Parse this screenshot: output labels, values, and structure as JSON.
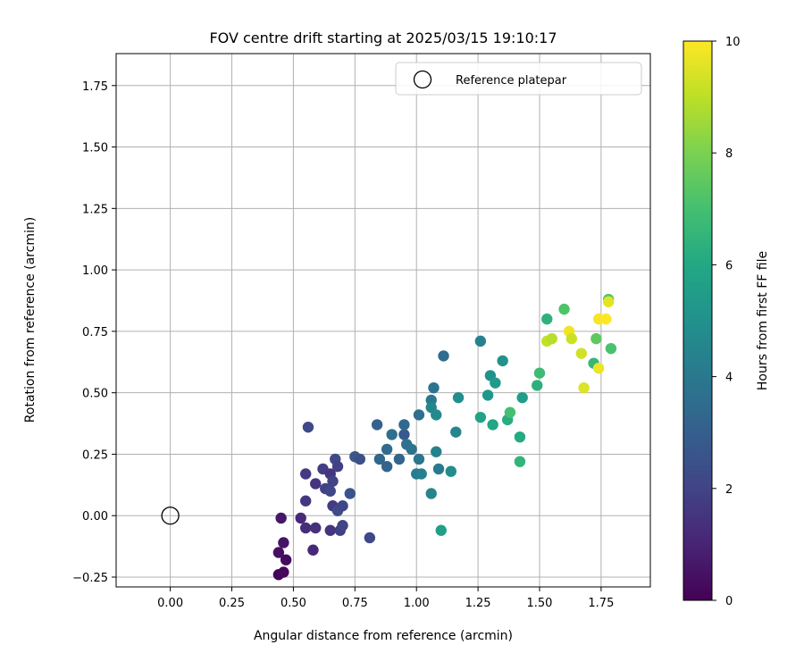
{
  "chart_data": {
    "type": "scatter",
    "title": "FOV centre drift starting at 2025/03/15 19:10:17",
    "xlabel": "Angular distance from reference (arcmin)",
    "ylabel": "Rotation from reference (arcmin)",
    "xlim": [
      -0.22,
      1.95
    ],
    "ylim": [
      -0.29,
      1.88
    ],
    "xticks": [
      "0.00",
      "0.25",
      "0.50",
      "0.75",
      "1.00",
      "1.25",
      "1.50",
      "1.75"
    ],
    "xtick_values": [
      0,
      0.25,
      0.5,
      0.75,
      1.0,
      1.25,
      1.5,
      1.75
    ],
    "yticks": [
      "−0.25",
      "0.00",
      "0.25",
      "0.50",
      "0.75",
      "1.00",
      "1.25",
      "1.50",
      "1.75"
    ],
    "ytick_values": [
      -0.25,
      0,
      0.25,
      0.5,
      0.75,
      1.0,
      1.25,
      1.5,
      1.75
    ],
    "grid": true,
    "legend": {
      "position": "top-right",
      "label": "Reference platepar"
    },
    "reference_point": {
      "x": 0.0,
      "y": 0.0
    },
    "colorbar": {
      "label": "Hours from first FF file",
      "range": [
        0,
        10
      ],
      "ticks": [
        "0",
        "2",
        "4",
        "6",
        "8",
        "10"
      ],
      "tick_values": [
        0,
        2,
        4,
        6,
        8,
        10
      ],
      "colormap": "viridis"
    },
    "points": [
      {
        "x": 0.44,
        "y": -0.24,
        "h": 0.1
      },
      {
        "x": 0.46,
        "y": -0.23,
        "h": 0.2
      },
      {
        "x": 0.47,
        "y": -0.18,
        "h": 0.3
      },
      {
        "x": 0.44,
        "y": -0.15,
        "h": 0.4
      },
      {
        "x": 0.46,
        "y": -0.11,
        "h": 0.5
      },
      {
        "x": 0.45,
        "y": -0.01,
        "h": 0.6
      },
      {
        "x": 0.53,
        "y": -0.01,
        "h": 1.2
      },
      {
        "x": 0.55,
        "y": -0.05,
        "h": 1.3
      },
      {
        "x": 0.58,
        "y": -0.14,
        "h": 1.1
      },
      {
        "x": 0.59,
        "y": -0.05,
        "h": 1.4
      },
      {
        "x": 0.55,
        "y": 0.06,
        "h": 1.6
      },
      {
        "x": 0.59,
        "y": 0.13,
        "h": 1.5
      },
      {
        "x": 0.55,
        "y": 0.17,
        "h": 1.7
      },
      {
        "x": 0.56,
        "y": 0.36,
        "h": 2.2
      },
      {
        "x": 0.62,
        "y": 0.19,
        "h": 1.8
      },
      {
        "x": 0.63,
        "y": 0.11,
        "h": 1.9
      },
      {
        "x": 0.65,
        "y": 0.17,
        "h": 1.6
      },
      {
        "x": 0.66,
        "y": 0.14,
        "h": 2.0
      },
      {
        "x": 0.65,
        "y": 0.1,
        "h": 2.1
      },
      {
        "x": 0.66,
        "y": 0.04,
        "h": 1.7
      },
      {
        "x": 0.68,
        "y": 0.02,
        "h": 2.3
      },
      {
        "x": 0.67,
        "y": 0.23,
        "h": 2.2
      },
      {
        "x": 0.68,
        "y": 0.2,
        "h": 1.9
      },
      {
        "x": 0.65,
        "y": -0.06,
        "h": 1.5
      },
      {
        "x": 0.69,
        "y": -0.06,
        "h": 1.8
      },
      {
        "x": 0.7,
        "y": -0.04,
        "h": 2.0
      },
      {
        "x": 0.7,
        "y": 0.04,
        "h": 2.1
      },
      {
        "x": 0.73,
        "y": 0.09,
        "h": 2.6
      },
      {
        "x": 0.75,
        "y": 0.24,
        "h": 2.7
      },
      {
        "x": 0.77,
        "y": 0.23,
        "h": 2.4
      },
      {
        "x": 0.81,
        "y": -0.09,
        "h": 2.2
      },
      {
        "x": 0.84,
        "y": 0.37,
        "h": 3.1
      },
      {
        "x": 0.85,
        "y": 0.23,
        "h": 3.3
      },
      {
        "x": 0.88,
        "y": 0.27,
        "h": 3.5
      },
      {
        "x": 0.88,
        "y": 0.2,
        "h": 3.2
      },
      {
        "x": 0.9,
        "y": 0.33,
        "h": 3.6
      },
      {
        "x": 0.93,
        "y": 0.23,
        "h": 3.2
      },
      {
        "x": 0.95,
        "y": 0.33,
        "h": 2.8
      },
      {
        "x": 0.95,
        "y": 0.37,
        "h": 3.4
      },
      {
        "x": 0.96,
        "y": 0.29,
        "h": 3.7
      },
      {
        "x": 0.98,
        "y": 0.27,
        "h": 3.8
      },
      {
        "x": 1.0,
        "y": 0.17,
        "h": 4.2
      },
      {
        "x": 1.01,
        "y": 0.23,
        "h": 3.9
      },
      {
        "x": 1.01,
        "y": 0.41,
        "h": 3.6
      },
      {
        "x": 1.02,
        "y": 0.17,
        "h": 4.3
      },
      {
        "x": 1.06,
        "y": 0.09,
        "h": 4.5
      },
      {
        "x": 1.06,
        "y": 0.47,
        "h": 4.0
      },
      {
        "x": 1.07,
        "y": 0.52,
        "h": 3.8
      },
      {
        "x": 1.06,
        "y": 0.44,
        "h": 4.6
      },
      {
        "x": 1.08,
        "y": 0.41,
        "h": 4.7
      },
      {
        "x": 1.08,
        "y": 0.26,
        "h": 4.4
      },
      {
        "x": 1.09,
        "y": 0.19,
        "h": 4.1
      },
      {
        "x": 1.1,
        "y": -0.06,
        "h": 5.6
      },
      {
        "x": 1.11,
        "y": 0.65,
        "h": 3.5
      },
      {
        "x": 1.14,
        "y": 0.18,
        "h": 4.8
      },
      {
        "x": 1.16,
        "y": 0.34,
        "h": 4.6
      },
      {
        "x": 1.17,
        "y": 0.48,
        "h": 4.9
      },
      {
        "x": 1.26,
        "y": 0.71,
        "h": 4.3
      },
      {
        "x": 1.26,
        "y": 0.4,
        "h": 5.8
      },
      {
        "x": 1.29,
        "y": 0.49,
        "h": 5.2
      },
      {
        "x": 1.3,
        "y": 0.57,
        "h": 5.0
      },
      {
        "x": 1.31,
        "y": 0.37,
        "h": 5.9
      },
      {
        "x": 1.32,
        "y": 0.54,
        "h": 5.4
      },
      {
        "x": 1.35,
        "y": 0.63,
        "h": 5.1
      },
      {
        "x": 1.37,
        "y": 0.39,
        "h": 6.2
      },
      {
        "x": 1.38,
        "y": 0.42,
        "h": 7.0
      },
      {
        "x": 1.42,
        "y": 0.22,
        "h": 6.5
      },
      {
        "x": 1.42,
        "y": 0.32,
        "h": 6.1
      },
      {
        "x": 1.43,
        "y": 0.48,
        "h": 5.5
      },
      {
        "x": 1.49,
        "y": 0.53,
        "h": 6.3
      },
      {
        "x": 1.5,
        "y": 0.58,
        "h": 6.8
      },
      {
        "x": 1.53,
        "y": 0.8,
        "h": 6.4
      },
      {
        "x": 1.53,
        "y": 0.71,
        "h": 9.1
      },
      {
        "x": 1.55,
        "y": 0.72,
        "h": 8.9
      },
      {
        "x": 1.6,
        "y": 0.84,
        "h": 7.2
      },
      {
        "x": 1.62,
        "y": 0.75,
        "h": 9.8
      },
      {
        "x": 1.63,
        "y": 0.72,
        "h": 9.2
      },
      {
        "x": 1.67,
        "y": 0.66,
        "h": 9.3
      },
      {
        "x": 1.68,
        "y": 0.52,
        "h": 9.5
      },
      {
        "x": 1.72,
        "y": 0.62,
        "h": 6.6
      },
      {
        "x": 1.73,
        "y": 0.72,
        "h": 7.5
      },
      {
        "x": 1.74,
        "y": 0.8,
        "h": 9.9
      },
      {
        "x": 1.74,
        "y": 0.6,
        "h": 9.7
      },
      {
        "x": 1.77,
        "y": 0.8,
        "h": 10.0
      },
      {
        "x": 1.78,
        "y": 0.88,
        "h": 7.3
      },
      {
        "x": 1.78,
        "y": 0.87,
        "h": 9.6
      },
      {
        "x": 1.79,
        "y": 0.68,
        "h": 7.1
      }
    ]
  }
}
